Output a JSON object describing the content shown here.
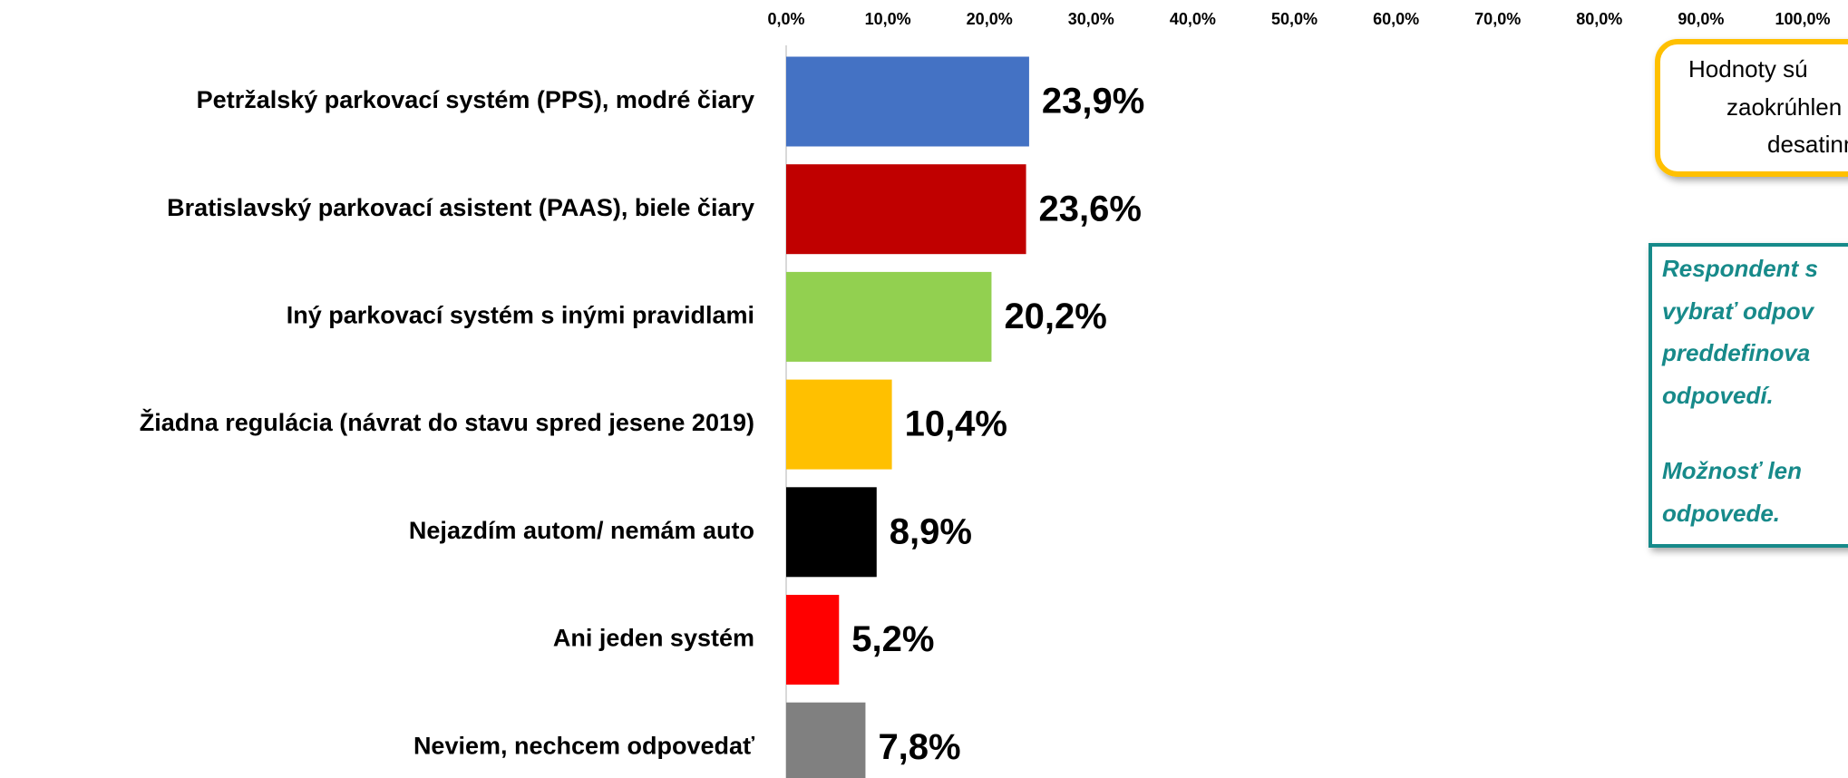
{
  "chart_data": {
    "type": "bar",
    "orientation": "horizontal",
    "categories": [
      "Petržalský parkovací systém (PPS), modré čiary",
      "Bratislavský parkovací asistent (PAAS), biele čiary",
      "Iný parkovací systém s inými pravidlami",
      "Žiadna regulácia (návrat do stavu spred jesene 2019)",
      "Nejazdím autom/ nemám auto",
      "Ani jeden systém",
      "Neviem, nechcem odpovedať"
    ],
    "values": [
      23.9,
      23.6,
      20.2,
      10.4,
      8.9,
      5.2,
      7.8
    ],
    "value_labels": [
      "23,9%",
      "23,6%",
      "20,2%",
      "10,4%",
      "8,9%",
      "5,2%",
      "7,8%"
    ],
    "colors": [
      "#4472c4",
      "#c00000",
      "#92d050",
      "#ffc000",
      "#000000",
      "#ff0000",
      "#808080"
    ],
    "xlim": [
      0,
      100
    ],
    "xticks": [
      {
        "value": 0,
        "label": "0,0%"
      },
      {
        "value": 10,
        "label": "10,0%"
      },
      {
        "value": 20,
        "label": "20,0%"
      },
      {
        "value": 30,
        "label": "30,0%"
      },
      {
        "value": 40,
        "label": "40,0%"
      },
      {
        "value": 50,
        "label": "50,0%"
      },
      {
        "value": 60,
        "label": "60,0%"
      },
      {
        "value": 70,
        "label": "70,0%"
      },
      {
        "value": 80,
        "label": "80,0%"
      },
      {
        "value": 90,
        "label": "90,0%"
      },
      {
        "value": 100,
        "label": "100,0%"
      }
    ],
    "grid": false
  },
  "notes": {
    "rounding": [
      "Hodnoty sú",
      "zaokrúhlen",
      "desatinn"
    ],
    "respondent": [
      "Respondent s",
      "vybrať odpov",
      "preddefinova",
      "odpovedí.",
      "Možnosť len",
      "odpovede."
    ]
  }
}
